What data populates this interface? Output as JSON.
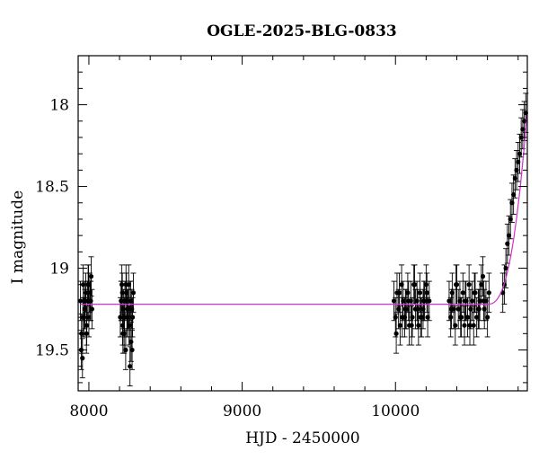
{
  "chart_data": {
    "type": "scatter",
    "title": "OGLE-2025-BLG-0833",
    "xlabel": "HJD - 2450000",
    "ylabel": "I magnitude",
    "xlim": [
      7930,
      10860
    ],
    "ylim": [
      19.75,
      17.7
    ],
    "y_inverted": true,
    "x_ticks": [
      8000,
      9000,
      10000
    ],
    "x_tick_labels": [
      "8000",
      "9000",
      "10000"
    ],
    "y_ticks": [
      18,
      18.5,
      19,
      19.5
    ],
    "y_tick_labels": [
      "18",
      "18.5",
      "19",
      "19.5"
    ],
    "grid": false,
    "legend": "none",
    "series": [
      {
        "kind": "points_with_errorbars",
        "color": "#000000",
        "x": [
          7945,
          7952,
          7958,
          7963,
          7968,
          7974,
          7980,
          7986,
          7990,
          7995,
          8000,
          8006,
          8010,
          8015,
          8020,
          7950,
          7960,
          7972,
          7984,
          7998,
          8012,
          8205,
          8210,
          8215,
          8220,
          8225,
          8230,
          8235,
          8240,
          8245,
          8250,
          8255,
          8260,
          8265,
          8270,
          8275,
          8280,
          8285,
          8290,
          8212,
          8222,
          8232,
          8242,
          8252,
          8262,
          8272,
          8282,
          8218,
          8248,
          8268,
          9990,
          10000,
          10010,
          10020,
          10030,
          10040,
          10050,
          10060,
          10070,
          10080,
          10090,
          10100,
          10110,
          10120,
          10130,
          10140,
          10150,
          10160,
          10170,
          10180,
          10190,
          10200,
          10210,
          10220,
          10005,
          10025,
          10045,
          10065,
          10085,
          10105,
          10125,
          10145,
          10165,
          10185,
          10205,
          10350,
          10360,
          10370,
          10380,
          10390,
          10400,
          10410,
          10420,
          10430,
          10440,
          10450,
          10460,
          10470,
          10480,
          10490,
          10500,
          10510,
          10520,
          10530,
          10540,
          10550,
          10560,
          10570,
          10580,
          10590,
          10600,
          10610,
          10365,
          10395,
          10425,
          10455,
          10485,
          10515,
          10545,
          10575,
          10700,
          10710,
          10720,
          10730,
          10740,
          10750,
          10760,
          10770,
          10780,
          10790,
          10800,
          10810,
          10820,
          10830,
          10840,
          10850
        ],
        "y": [
          19.2,
          19.4,
          19.55,
          19.1,
          19.3,
          19.25,
          19.15,
          19.35,
          19.2,
          19.1,
          19.3,
          19.15,
          19.2,
          19.05,
          19.25,
          19.5,
          19.3,
          19.2,
          19.4,
          19.1,
          19.2,
          19.3,
          19.2,
          19.1,
          19.35,
          19.25,
          19.4,
          19.2,
          19.5,
          19.15,
          19.3,
          19.25,
          19.1,
          19.35,
          19.2,
          19.45,
          19.25,
          19.3,
          19.15,
          19.2,
          19.4,
          19.3,
          19.1,
          19.25,
          19.35,
          19.2,
          19.5,
          19.15,
          19.3,
          19.6,
          19.2,
          19.3,
          19.15,
          19.25,
          19.35,
          19.1,
          19.2,
          19.3,
          19.25,
          19.15,
          19.35,
          19.2,
          19.3,
          19.1,
          19.25,
          19.2,
          19.35,
          19.15,
          19.3,
          19.25,
          19.2,
          19.1,
          19.3,
          19.2,
          19.4,
          19.15,
          19.3,
          19.25,
          19.2,
          19.35,
          19.1,
          19.25,
          19.3,
          19.2,
          19.15,
          19.2,
          19.3,
          19.15,
          19.25,
          19.35,
          19.1,
          19.25,
          19.2,
          19.3,
          19.15,
          19.35,
          19.2,
          19.3,
          19.1,
          19.25,
          19.2,
          19.35,
          19.15,
          19.3,
          19.25,
          19.2,
          19.1,
          19.05,
          19.25,
          19.2,
          19.3,
          19.15,
          19.25,
          19.1,
          19.3,
          19.2,
          19.35,
          19.15,
          19.25,
          19.2,
          19.15,
          19.1,
          19.0,
          18.85,
          18.8,
          18.7,
          18.6,
          18.55,
          18.45,
          18.4,
          18.35,
          18.3,
          18.2,
          18.15,
          18.1,
          18.05
        ],
        "yerr": 0.12
      },
      {
        "kind": "model_curve",
        "color": "#cc33cc",
        "baseline_mag": 19.22
      }
    ]
  }
}
